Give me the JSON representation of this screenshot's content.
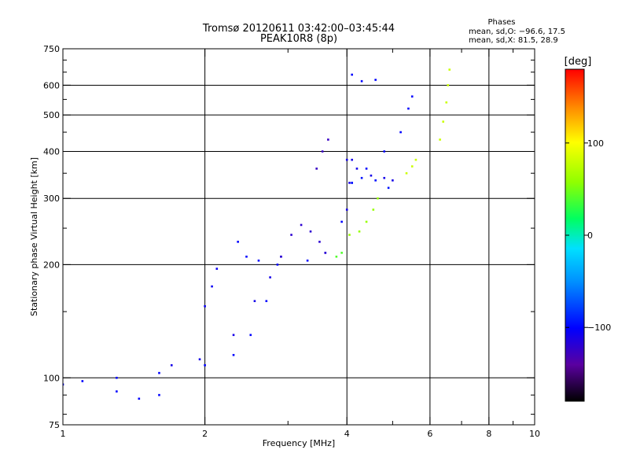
{
  "header": {
    "title": "Tromsø 20120611 03:42:00–03:45:44",
    "subtitle": "PEAK10R8 (8p)",
    "phase_heading": "Phases",
    "phase_o": "mean, sd,O: −96.6, 17.5",
    "phase_x": "mean, sd,X:  81.5, 28.9"
  },
  "colorbar": {
    "label": "[deg]",
    "min": -180,
    "max": 180,
    "ticks": [
      {
        "value": 100,
        "label": "100"
      },
      {
        "value": 0,
        "label": "0"
      },
      {
        "value": -100,
        "label": "−100"
      }
    ]
  },
  "chart_data": {
    "type": "scatter",
    "xlabel": "Frequency [MHz]",
    "ylabel": "Stationary phase Virtual Height [km]",
    "xscale": "log",
    "yscale": "log",
    "xlim": [
      1,
      10
    ],
    "ylim": [
      75,
      750
    ],
    "grid": true,
    "xticks": [
      {
        "value": 1,
        "label": "1",
        "grid": false
      },
      {
        "value": 2,
        "label": "2",
        "grid": true
      },
      {
        "value": 4,
        "label": "4",
        "grid": true
      },
      {
        "value": 6,
        "label": "6",
        "grid": true
      },
      {
        "value": 8,
        "label": "8",
        "grid": true
      },
      {
        "value": 10,
        "label": "10",
        "grid": false
      }
    ],
    "xminor": [
      3,
      5,
      7,
      9
    ],
    "yticks": [
      {
        "value": 75,
        "label": "75",
        "grid": false
      },
      {
        "value": 100,
        "label": "100",
        "grid": true
      },
      {
        "value": 200,
        "label": "200",
        "grid": true
      },
      {
        "value": 300,
        "label": "300",
        "grid": true
      },
      {
        "value": 400,
        "label": "400",
        "grid": true
      },
      {
        "value": 500,
        "label": "500",
        "grid": true
      },
      {
        "value": 600,
        "label": "600",
        "grid": true
      },
      {
        "value": 750,
        "label": "750",
        "grid": false
      }
    ],
    "yminor": [
      80,
      90,
      150,
      250,
      350,
      450,
      550,
      650,
      700
    ],
    "traces": [
      {
        "phase": -100,
        "points": [
          [
            1.0,
            96
          ],
          [
            1.1,
            98
          ],
          [
            1.3,
            100
          ],
          [
            1.6,
            103
          ],
          [
            2.0,
            108
          ],
          [
            2.3,
            115
          ],
          [
            2.5,
            130
          ],
          [
            2.7,
            160
          ],
          [
            2.85,
            200
          ],
          [
            3.3,
            205
          ],
          [
            3.6,
            215
          ],
          [
            3.9,
            260
          ],
          [
            4.1,
            330
          ],
          [
            4.4,
            360
          ],
          [
            4.8,
            400
          ],
          [
            5.2,
            450
          ],
          [
            5.4,
            520
          ],
          [
            5.5,
            560
          ]
        ]
      },
      {
        "phase": -110,
        "points": [
          [
            1.7,
            108
          ],
          [
            1.95,
            112
          ],
          [
            2.3,
            130
          ],
          [
            2.55,
            160
          ],
          [
            2.75,
            185
          ],
          [
            2.9,
            210
          ]
        ]
      },
      {
        "phase": -105,
        "points": [
          [
            2.0,
            155
          ],
          [
            2.07,
            175
          ],
          [
            2.12,
            195
          ]
        ]
      },
      {
        "phase": -100,
        "points": [
          [
            2.35,
            230
          ],
          [
            2.45,
            210
          ],
          [
            2.6,
            205
          ]
        ]
      },
      {
        "phase": -120,
        "points": [
          [
            2.9,
            210
          ],
          [
            3.05,
            240
          ],
          [
            3.2,
            255
          ],
          [
            3.35,
            245
          ],
          [
            3.5,
            230
          ],
          [
            3.6,
            215
          ]
        ]
      },
      {
        "phase": -125,
        "points": [
          [
            3.45,
            360
          ],
          [
            3.55,
            400
          ],
          [
            3.65,
            430
          ]
        ]
      },
      {
        "phase": -110,
        "points": [
          [
            4.0,
            380
          ],
          [
            4.2,
            360
          ],
          [
            4.5,
            345
          ],
          [
            4.8,
            340
          ],
          [
            5.0,
            335
          ]
        ]
      },
      {
        "phase": -95,
        "points": [
          [
            4.1,
            330
          ],
          [
            4.3,
            340
          ],
          [
            4.6,
            335
          ],
          [
            4.9,
            320
          ]
        ]
      },
      {
        "phase": -100,
        "points": [
          [
            4.1,
            640
          ],
          [
            4.3,
            615
          ],
          [
            4.6,
            620
          ]
        ]
      },
      {
        "phase": -110,
        "points": [
          [
            4.0,
            280
          ],
          [
            4.05,
            330
          ],
          [
            4.1,
            380
          ]
        ]
      },
      {
        "phase": -100,
        "points": [
          [
            1.3,
            92
          ],
          [
            1.45,
            88
          ],
          [
            1.6,
            90
          ]
        ]
      },
      {
        "phase": 60,
        "points": [
          [
            4.05,
            240
          ],
          [
            4.25,
            245
          ],
          [
            4.4,
            260
          ],
          [
            4.55,
            280
          ],
          [
            4.65,
            300
          ]
        ]
      },
      {
        "phase": 80,
        "points": [
          [
            6.3,
            430
          ],
          [
            6.4,
            480
          ],
          [
            6.5,
            540
          ],
          [
            6.55,
            600
          ],
          [
            6.6,
            660
          ]
        ]
      },
      {
        "phase": 80,
        "points": [
          [
            5.35,
            350
          ],
          [
            5.5,
            365
          ],
          [
            5.6,
            380
          ]
        ]
      },
      {
        "phase": 40,
        "points": [
          [
            3.8,
            210
          ],
          [
            3.9,
            215
          ]
        ]
      }
    ]
  }
}
